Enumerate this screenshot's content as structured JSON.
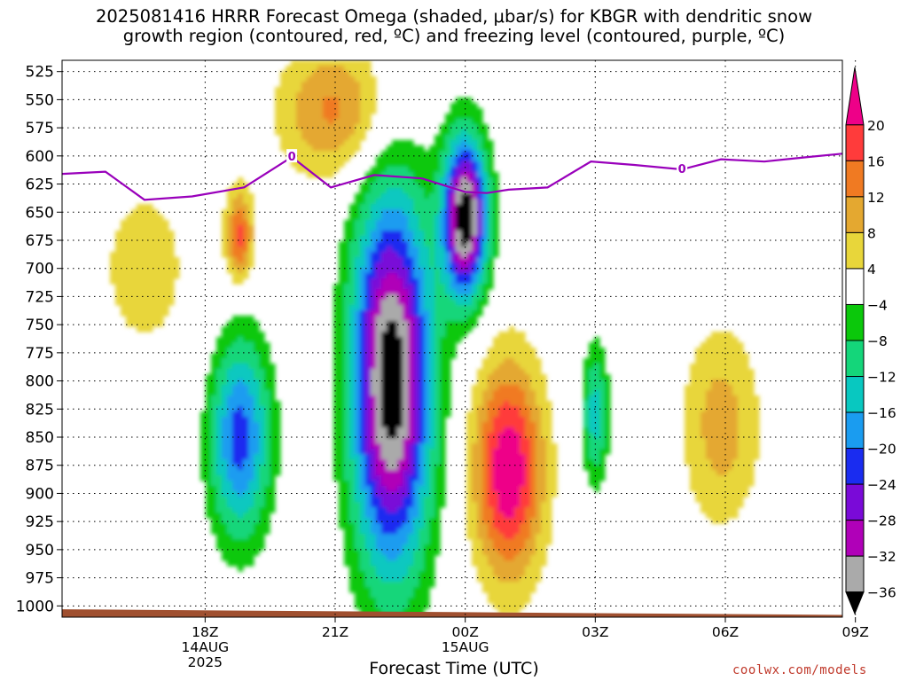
{
  "title_line1": "2025081416 HRRR Forecast Omega (shaded, μbar/s) for KBGR with dendritic snow",
  "title_line2": "growth region (contoured, red, ºC) and freezing level (contoured, purple, ºC)",
  "credit": "coolwx.com/models",
  "chart_data": {
    "type": "heatmap",
    "xlabel": "Forecast Time (UTC)",
    "ylabel": "",
    "y_scale": "pressure (hPa), inverted",
    "ylim": [
      1010,
      515
    ],
    "xlim_hours_utc_from_14aug_18z": [
      -3.3,
      14.7
    ],
    "y_ticks": [
      "525",
      "550",
      "575",
      "600",
      "625",
      "650",
      "675",
      "700",
      "725",
      "750",
      "775",
      "800",
      "825",
      "850",
      "875",
      "900",
      "925",
      "950",
      "975",
      "1000"
    ],
    "x_ticks": [
      {
        "time": "18Z",
        "date": "14AUG",
        "year": "2025"
      },
      {
        "time": "21Z",
        "date": "",
        "year": ""
      },
      {
        "time": "00Z",
        "date": "15AUG",
        "year": ""
      },
      {
        "time": "03Z",
        "date": "",
        "year": ""
      },
      {
        "time": "06Z",
        "date": "",
        "year": ""
      },
      {
        "time": "09Z",
        "date": "",
        "year": ""
      }
    ],
    "grid": true,
    "colorbar": {
      "placement": "right",
      "labels": [
        "20",
        "16",
        "12",
        "8",
        "4",
        "−4",
        "−8",
        "−12",
        "−16",
        "−20",
        "−24",
        "−28",
        "−32",
        "−36"
      ],
      "bins": [
        {
          "low": 20,
          "high": null,
          "color": "#ee0088"
        },
        {
          "low": 16,
          "high": 20,
          "color": "#ff3b3b"
        },
        {
          "low": 12,
          "high": 16,
          "color": "#f07a22"
        },
        {
          "low": 8,
          "high": 12,
          "color": "#e4a830"
        },
        {
          "low": 4,
          "high": 8,
          "color": "#e8d63a"
        },
        {
          "low": -4,
          "high": 4,
          "color": "#ffffff"
        },
        {
          "low": -8,
          "high": -4,
          "color": "#0bc80b"
        },
        {
          "low": -12,
          "high": -8,
          "color": "#14d67a"
        },
        {
          "low": -16,
          "high": -12,
          "color": "#08c8c0"
        },
        {
          "low": -20,
          "high": -16,
          "color": "#1a9cf0"
        },
        {
          "low": -24,
          "high": -20,
          "color": "#1a2cf0"
        },
        {
          "low": -28,
          "high": -24,
          "color": "#7a0ad8"
        },
        {
          "low": -32,
          "high": -28,
          "color": "#b000b8"
        },
        {
          "low": -36,
          "high": -32,
          "color": "#aaaaaa"
        },
        {
          "low": null,
          "high": -36,
          "color": "#000000"
        }
      ]
    },
    "omega_features": [
      {
        "name": "weak upward (yellow) area left",
        "t": -1.4,
        "p": 700,
        "dt": 1.6,
        "dp": 120,
        "omega": 5
      },
      {
        "name": "upward core left",
        "t": 0.8,
        "p": 672,
        "dt": 0.3,
        "dp": 40,
        "omega": 17
      },
      {
        "name": "upward area top",
        "t": 3.0,
        "p": 560,
        "dt": 1.3,
        "dp": 60,
        "omega": 13
      },
      {
        "name": "strong sinking column",
        "t": 4.3,
        "p": 800,
        "dt": 0.9,
        "dp": 165,
        "omega": -40
      },
      {
        "name": "sinking column upper",
        "t": 6.0,
        "p": 655,
        "dt": 0.5,
        "dp": 70,
        "omega": -40
      },
      {
        "name": "strong upward column",
        "t": 7.0,
        "p": 880,
        "dt": 0.8,
        "dp": 95,
        "omega": 24
      },
      {
        "name": "sinking lower left",
        "t": 0.8,
        "p": 850,
        "dt": 0.7,
        "dp": 90,
        "omega": -22
      },
      {
        "name": "sinking near 03Z",
        "t": 9.0,
        "p": 830,
        "dt": 0.3,
        "dp": 60,
        "omega": -14
      },
      {
        "name": "upward near 06Z",
        "t": 11.9,
        "p": 840,
        "dt": 0.9,
        "dp": 90,
        "omega": 10
      }
    ],
    "freezing_level": {
      "color": "#9900bb",
      "label": "0",
      "t": [
        -3.3,
        -2.3,
        -1.4,
        -0.3,
        0.9,
        2.0,
        2.9,
        3.9,
        5.0,
        6.0,
        6.5,
        7.0,
        7.9,
        8.9,
        9.9,
        11.0,
        11.9,
        12.9,
        13.9,
        14.7
      ],
      "p": [
        616,
        614,
        639,
        636,
        628,
        601,
        628,
        617,
        620,
        632,
        633,
        630,
        628,
        605,
        608,
        612,
        603,
        605,
        601,
        598
      ]
    },
    "terrain": {
      "color": "#a05030",
      "p_top_start": 1003,
      "p_top_end": 1008
    }
  }
}
